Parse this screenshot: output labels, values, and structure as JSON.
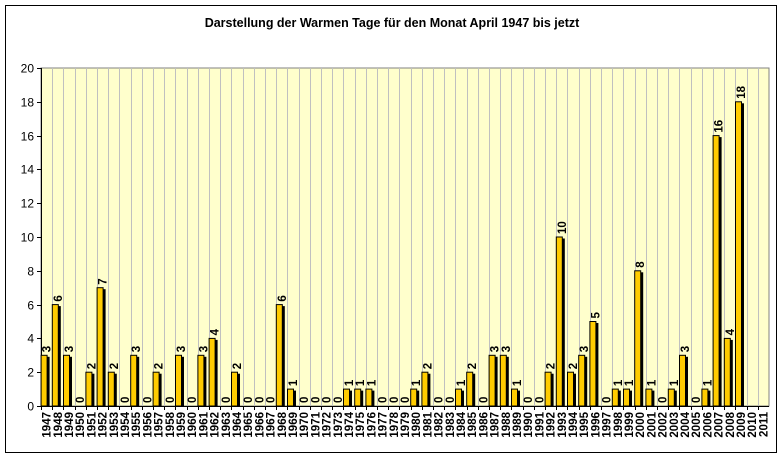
{
  "chart_data": {
    "type": "bar",
    "title": "Darstellung der Warmen Tage  für den Monat April 1947 bis jetzt",
    "xlabel": "",
    "ylabel": "",
    "ylim": [
      0,
      20
    ],
    "yticks": [
      0,
      2,
      4,
      6,
      8,
      10,
      12,
      14,
      16,
      18,
      20
    ],
    "grid": "vertical",
    "legend": "none",
    "colors": {
      "bar": "#FFCC00",
      "shadow": "#000000",
      "plot_bg": "#FFFFCC",
      "grid": "#C0C0C0"
    },
    "categories": [
      "1947",
      "1948",
      "1949",
      "1950",
      "1951",
      "1952",
      "1953",
      "1954",
      "1955",
      "1956",
      "1957",
      "1958",
      "1959",
      "1960",
      "1961",
      "1962",
      "1963",
      "1964",
      "1965",
      "1966",
      "1967",
      "1968",
      "1969",
      "1970",
      "1971",
      "1972",
      "1973",
      "1974",
      "1975",
      "1976",
      "1977",
      "1978",
      "1979",
      "1980",
      "1981",
      "1982",
      "1983",
      "1984",
      "1985",
      "1986",
      "1987",
      "1988",
      "1989",
      "1990",
      "1991",
      "1992",
      "1993",
      "1994",
      "1995",
      "1996",
      "1997",
      "1998",
      "1999",
      "2000",
      "2001",
      "2002",
      "2003",
      "2004",
      "2005",
      "2006",
      "2007",
      "2008",
      "2009",
      "2010",
      "2011"
    ],
    "values": [
      3,
      6,
      3,
      0,
      2,
      7,
      2,
      0,
      3,
      0,
      2,
      0,
      3,
      0,
      3,
      4,
      0,
      2,
      0,
      0,
      0,
      6,
      1,
      0,
      0,
      0,
      0,
      1,
      1,
      1,
      0,
      0,
      0,
      1,
      2,
      0,
      0,
      1,
      2,
      0,
      3,
      3,
      1,
      0,
      0,
      2,
      10,
      2,
      3,
      5,
      0,
      1,
      1,
      8,
      1,
      0,
      1,
      3,
      0,
      1,
      16,
      4,
      18,
      null,
      null
    ]
  }
}
